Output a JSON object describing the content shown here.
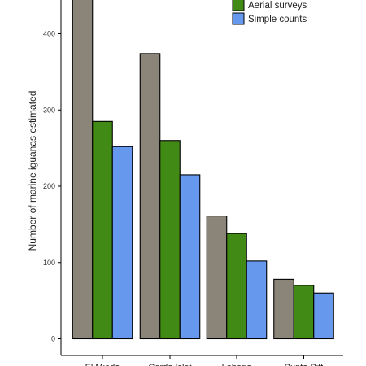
{
  "colors": {
    "series_1": "#8b8478",
    "series_2": "#418a16",
    "series_3": "#6699ee",
    "axis": "#000000",
    "bar_outline": "#000000"
  },
  "chart_data": {
    "type": "bar",
    "title": "",
    "xlabel": "",
    "ylabel": "Number of marine iguanas estimated",
    "ylim": [
      0,
      450
    ],
    "yticks": [
      0,
      100,
      200,
      300,
      400
    ],
    "categories": [
      "El Miedo",
      "Cerdo Islet",
      "Loberia",
      "Punta Pitt"
    ],
    "series": [
      {
        "values": [
          470,
          374,
          161,
          78
        ]
      },
      {
        "name": "Aerial surveys",
        "values": [
          285,
          260,
          138,
          70
        ]
      },
      {
        "name": "Simple counts",
        "values": [
          252,
          215,
          102,
          60
        ]
      }
    ],
    "grid": false,
    "legend_position": "top-right"
  }
}
